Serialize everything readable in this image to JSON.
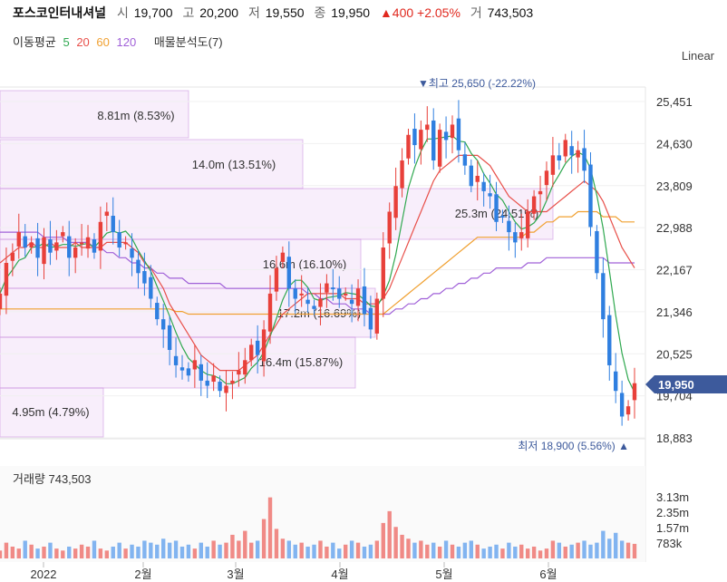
{
  "header": {
    "name": "포스코인터내셔널",
    "open_label": "시",
    "open": "19,700",
    "high_label": "고",
    "high": "20,200",
    "low_label": "저",
    "low": "19,550",
    "close_label": "종",
    "close": "19,950",
    "change": "▲400 +2.05%",
    "volume_label": "거",
    "volume": "743,503"
  },
  "ma_legend": {
    "label": "이동평균",
    "periods": [
      {
        "value": "5",
        "color": "#2fa84f"
      },
      {
        "value": "20",
        "color": "#e8504a"
      },
      {
        "value": "60",
        "color": "#f0a030"
      },
      {
        "value": "120",
        "color": "#a060d8"
      }
    ],
    "profile_label": "매물분석도(7)"
  },
  "scale_toggle": "Linear",
  "chart_data": {
    "type": "candlestick",
    "y_ticks": [
      "25,451",
      "24,630",
      "23,809",
      "22,988",
      "22,167",
      "21,346",
      "20,525",
      "19,704",
      "18,883"
    ],
    "x_ticks": [
      "2022",
      "2월",
      "3월",
      "4월",
      "5월",
      "6월"
    ],
    "current_price": "19,950",
    "high_marker": "▼최고 25,650 (-22.22%)",
    "low_marker": "최저 18,900 (5.56%) ▲",
    "volume_label": "거래량 743,503",
    "volume_ticks": [
      "3.13m",
      "2.35m",
      "1.57m",
      "783k"
    ],
    "volume_profile": [
      {
        "label": "8.81m (8.53%)",
        "value": 8.81
      },
      {
        "label": "14.0m (13.51%)",
        "value": 14.0
      },
      {
        "label": "25.3m (24.51%)",
        "value": 25.3
      },
      {
        "label": "16.6m (16.10%)",
        "value": 16.6
      },
      {
        "label": "17.2m (16.69%)",
        "value": 17.2
      },
      {
        "label": "16.4m (15.87%)",
        "value": 16.4
      },
      {
        "label": "4.95m (4.79%)",
        "value": 4.95
      }
    ],
    "closes": [
      21700,
      22300,
      22500,
      22900,
      22600,
      22700,
      22400,
      22800,
      22500,
      22700,
      22900,
      22400,
      22600,
      22700,
      22800,
      22500,
      23100,
      23300,
      22900,
      22600,
      22700,
      22400,
      22100,
      21900,
      21600,
      21200,
      21000,
      20600,
      20300,
      20200,
      20100,
      20400,
      20000,
      19900,
      20100,
      19800,
      19900,
      20000,
      20200,
      20400,
      20700,
      20500,
      21000,
      21700,
      22200,
      22500,
      21800,
      21600,
      21700,
      21500,
      21400,
      21600,
      21900,
      21800,
      21600,
      21700,
      21500,
      21800,
      21300,
      21000,
      21600,
      22600,
      23300,
      23800,
      24300,
      24800,
      24600,
      24900,
      25000,
      24300,
      24900,
      24700,
      25000,
      24500,
      24200,
      23800,
      24000,
      23700,
      23600,
      23100,
      23200,
      22900,
      22700,
      22900,
      23300,
      23600,
      23700,
      24100,
      24400,
      24300,
      24700,
      24400,
      24500,
      24100,
      23000,
      22100,
      21200,
      20300,
      19800,
      19300,
      19500,
      19950
    ],
    "volumes": [
      0.4,
      0.8,
      0.6,
      0.5,
      0.9,
      0.7,
      0.5,
      0.6,
      0.8,
      0.5,
      0.4,
      0.6,
      0.5,
      0.7,
      0.6,
      0.9,
      0.5,
      0.4,
      0.6,
      0.8,
      0.5,
      0.7,
      0.6,
      0.9,
      0.8,
      0.7,
      1.0,
      0.8,
      0.9,
      0.6,
      0.7,
      0.5,
      0.8,
      0.6,
      0.9,
      0.7,
      0.8,
      1.2,
      0.9,
      1.4,
      0.8,
      0.9,
      2.0,
      3.1,
      1.5,
      1.0,
      0.9,
      0.7,
      0.8,
      0.6,
      0.7,
      0.9,
      0.6,
      0.8,
      0.5,
      0.7,
      0.9,
      0.8,
      0.6,
      0.7,
      0.9,
      1.8,
      2.4,
      1.6,
      1.2,
      1.0,
      0.8,
      0.9,
      0.7,
      0.8,
      0.6,
      0.9,
      0.7,
      0.6,
      0.8,
      0.9,
      0.7,
      0.5,
      0.6,
      0.7,
      0.5,
      0.8,
      0.6,
      0.7,
      0.5,
      0.6,
      0.4,
      0.5,
      0.9,
      0.8,
      0.6,
      0.7,
      0.8,
      0.9,
      0.7,
      0.8,
      1.4,
      1.0,
      1.3,
      0.9,
      0.8,
      0.74
    ],
    "ma20": [
      22300,
      22400,
      22500,
      22600,
      22600,
      22700,
      22600,
      22600,
      22700,
      22600,
      22600,
      22600,
      22700,
      22600,
      22600,
      22600,
      22600,
      22700,
      22700,
      22700,
      22700,
      22600,
      22500,
      22300,
      22200,
      22000,
      21800,
      21500,
      21300,
      21100,
      20900,
      20700,
      20500,
      20400,
      20300,
      20200,
      20200,
      20200,
      20200,
      20300,
      20400,
      20500,
      20700,
      20900,
      21100,
      21300,
      21400,
      21500,
      21600,
      21700,
      21700,
      21700,
      21700,
      21700,
      21700,
      21600,
      21600,
      21600,
      21500,
      21500,
      21500,
      21600,
      21800,
      22100,
      22400,
      22700,
      23000,
      23300,
      23600,
      23900,
      24100,
      24200,
      24300,
      24400,
      24400,
      24400,
      24400,
      24300,
      24200,
      24000,
      23800,
      23600,
      23500,
      23400,
      23300,
      23300,
      23300,
      23300,
      23400,
      23500,
      23600,
      23700,
      23800,
      23900,
      23800,
      23700,
      23500,
      23200,
      22900,
      22600,
      22400,
      22200
    ],
    "ma60": [
      21400,
      21400,
      21400,
      21400,
      21400,
      21400,
      21400,
      21400,
      21400,
      21400,
      21400,
      21400,
      21400,
      21400,
      21400,
      21400,
      21400,
      21400,
      21400,
      21400,
      21400,
      21400,
      21400,
      21400,
      21400,
      21400,
      21400,
      21400,
      21350,
      21350,
      21300,
      21300,
      21300,
      21300,
      21300,
      21300,
      21300,
      21300,
      21300,
      21300,
      21300,
      21300,
      21300,
      21300,
      21300,
      21300,
      21300,
      21300,
      21300,
      21300,
      21300,
      21300,
      21300,
      21300,
      21300,
      21300,
      21300,
      21300,
      21300,
      21300,
      21300,
      21300,
      21400,
      21500,
      21600,
      21700,
      21800,
      21900,
      22000,
      22100,
      22200,
      22300,
      22400,
      22500,
      22600,
      22700,
      22800,
      22800,
      22800,
      22800,
      22800,
      22800,
      22800,
      22800,
      22900,
      22900,
      23000,
      23100,
      23100,
      23200,
      23200,
      23200,
      23300,
      23300,
      23300,
      23300,
      23200,
      23200,
      23200,
      23100,
      23100,
      23100
    ],
    "ma120": [
      22900,
      22900,
      22900,
      22900,
      22900,
      22900,
      22900,
      22800,
      22800,
      22800,
      22800,
      22700,
      22700,
      22700,
      22700,
      22600,
      22600,
      22500,
      22500,
      22400,
      22400,
      22300,
      22300,
      22200,
      22200,
      22100,
      22100,
      22000,
      22000,
      22000,
      21900,
      21900,
      21900,
      21900,
      21900,
      21900,
      21800,
      21800,
      21800,
      21800,
      21800,
      21800,
      21800,
      21800,
      21800,
      21800,
      21800,
      21800,
      21800,
      21700,
      21700,
      21600,
      21600,
      21500,
      21500,
      21500,
      21400,
      21400,
      21400,
      21300,
      21300,
      21300,
      21300,
      21400,
      21400,
      21500,
      21500,
      21600,
      21600,
      21700,
      21700,
      21800,
      21800,
      21900,
      21900,
      22000,
      22000,
      22100,
      22100,
      22200,
      22200,
      22200,
      22200,
      22200,
      22300,
      22300,
      22300,
      22400,
      22400,
      22400,
      22400,
      22400,
      22400,
      22400,
      22400,
      22400,
      22400,
      22300,
      22300,
      22300,
      22300,
      22300
    ]
  }
}
